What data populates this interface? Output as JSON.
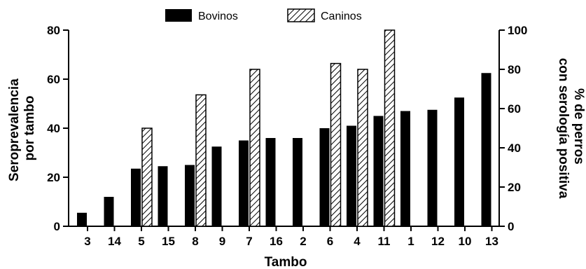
{
  "chart_data": {
    "type": "bar",
    "xlabel": "Tambo",
    "categories": [
      "3",
      "14",
      "5",
      "15",
      "8",
      "9",
      "7",
      "16",
      "2",
      "6",
      "4",
      "11",
      "1",
      "12",
      "10",
      "13"
    ],
    "series": [
      {
        "name": "Bovinos",
        "axis": "left",
        "fill": "solid",
        "color": "#000000",
        "values": [
          5.5,
          12,
          23.5,
          24.5,
          25,
          32.5,
          35,
          36,
          36,
          40,
          41,
          45,
          47,
          47.5,
          52.5,
          62.5
        ]
      },
      {
        "name": "Caninos",
        "axis": "right",
        "fill": "hatched",
        "color": "#000000",
        "values": [
          0,
          0,
          50,
          0,
          67,
          0,
          80,
          0,
          0,
          83,
          80,
          100,
          0,
          0,
          0,
          0
        ]
      }
    ],
    "left_axis": {
      "label_lines": [
        "Seroprevalencia",
        "por tambo"
      ],
      "ylim": [
        0,
        80
      ],
      "ticks": [
        0,
        20,
        40,
        60,
        80
      ]
    },
    "right_axis": {
      "label_lines": [
        "% de perros",
        "con serología positiva"
      ],
      "ylim": [
        0,
        100
      ],
      "ticks": [
        0,
        20,
        40,
        60,
        80,
        100
      ]
    },
    "legend": {
      "placement": "top-center"
    },
    "grid": false
  }
}
